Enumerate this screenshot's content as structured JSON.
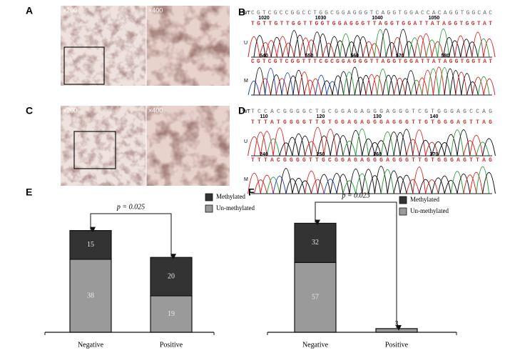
{
  "panels": [
    {
      "label": "A",
      "magnifications": [
        "×200",
        "×400"
      ]
    },
    {
      "label": "B",
      "rows": [
        {
          "label": "WT",
          "sequence": "CGTCGCCGGCCTGGCGGAGGGTCAGGTGGACCACAGGTGGCAC"
        },
        {
          "label": "U",
          "sequence": "TGTTGTTGGTTGGTGGAGGGTTAGGTGGATTATAGGTGGTAT",
          "positions": [
            1020,
            1030,
            1040,
            1050
          ]
        },
        {
          "label": "M",
          "sequence": "CGTCGTCGGTTTCGCGGAGGGTTAGGTGGATTATAGGTGGTAT",
          "positions": [
            540,
            550,
            560,
            570,
            580
          ]
        }
      ]
    },
    {
      "label": "C",
      "magnifications": [
        "×200",
        "×400"
      ]
    },
    {
      "label": "D",
      "rows": [
        {
          "label": "WT",
          "sequence": "TCCACGGGGCTGCGGAGAGGGAGGGTCGTGGGAGCCAG"
        },
        {
          "label": "U",
          "sequence": "TTTATGGGGTTGTGGAGAGGGAGGGTTGTGGGAGTTAG",
          "positions": [
            110,
            120,
            130,
            140
          ]
        },
        {
          "label": "M",
          "sequence": "TTTACGGGGTTGCGGAGAGGGAGGGTTGTGGGAGTTAG",
          "positions": [
            240,
            250,
            260,
            270
          ]
        }
      ]
    }
  ],
  "chart_data": [
    {
      "type": "stacked-bar",
      "label": "E",
      "categories": [
        "Negative",
        "Positive"
      ],
      "series": [
        {
          "name": "Un-methylated",
          "color": "#9a9a9a",
          "values": [
            38,
            19
          ]
        },
        {
          "name": "Methylated",
          "color": "#333333",
          "values": [
            15,
            20
          ]
        }
      ],
      "ylim": [
        0,
        67
      ],
      "annotation": "p = 0.025",
      "legend": "top right"
    },
    {
      "type": "stacked-bar",
      "label": "F",
      "categories": [
        "Negative",
        "Positive"
      ],
      "series": [
        {
          "name": "Un-methylated",
          "color": "#9a9a9a",
          "values": [
            57,
            3
          ]
        },
        {
          "name": "Methylated",
          "color": "#333333",
          "values": [
            32,
            0
          ],
          "value_labels": [
            "32",
            null
          ]
        }
      ],
      "ylim": [
        0,
        105
      ],
      "annotation": "p = 0.023",
      "legend": "top right"
    }
  ]
}
